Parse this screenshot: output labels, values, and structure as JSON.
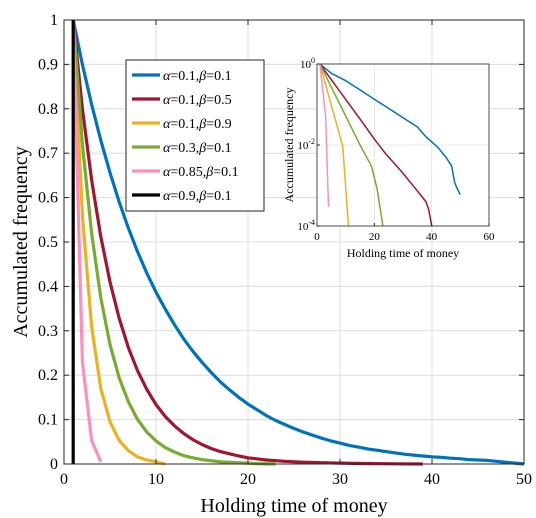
{
  "chart_data": [
    {
      "type": "line",
      "title": "",
      "xlabel": "Holding time of money",
      "ylabel": "Accumulated frequency",
      "xlim": [
        0,
        50
      ],
      "ylim": [
        0,
        1
      ],
      "xticks": [
        0,
        10,
        20,
        30,
        40,
        50
      ],
      "yticks": [
        0,
        0.1,
        0.2,
        0.3,
        0.4,
        0.5,
        0.6,
        0.7,
        0.8,
        0.9,
        1
      ],
      "xtick_labels": [
        "0",
        "10",
        "20",
        "30",
        "40",
        "50"
      ],
      "ytick_labels": [
        "0",
        "0.1",
        "0.2",
        "0.3",
        "0.4",
        "0.5",
        "0.6",
        "0.7",
        "0.8",
        "0.9",
        "1"
      ],
      "grid": true,
      "legend_position": "top-left",
      "series": [
        {
          "name": "α=0.1,β=0.1",
          "color": "#0072BD",
          "x": [
            1,
            2,
            3,
            4,
            5,
            6,
            7,
            8,
            9,
            10,
            11,
            12,
            13,
            14,
            15,
            16,
            17,
            18,
            19,
            20,
            21,
            22,
            23,
            24,
            25,
            26,
            27,
            28,
            29,
            30,
            31,
            32,
            33,
            34,
            35,
            36,
            37,
            38,
            39,
            40,
            41,
            42,
            43,
            44,
            45,
            46,
            47,
            48,
            49,
            50
          ],
          "y": [
            1,
            0.9,
            0.81,
            0.729,
            0.656,
            0.59,
            0.531,
            0.478,
            0.43,
            0.387,
            0.349,
            0.314,
            0.282,
            0.254,
            0.229,
            0.206,
            0.185,
            0.167,
            0.15,
            0.135,
            0.122,
            0.109,
            0.098,
            0.089,
            0.08,
            0.072,
            0.065,
            0.058,
            0.052,
            0.047,
            0.042,
            0.038,
            0.034,
            0.031,
            0.028,
            0.025,
            0.022,
            0.02,
            0.018,
            0.016,
            0.015,
            0.013,
            0.012,
            0.01,
            0.009,
            0.008,
            0.006,
            0.004,
            0.002,
            0
          ]
        },
        {
          "name": "α=0.1,β=0.5",
          "color": "#A2142F",
          "x": [
            1,
            2,
            3,
            4,
            5,
            6,
            7,
            8,
            9,
            10,
            11,
            12,
            13,
            14,
            15,
            16,
            17,
            18,
            19,
            20,
            22,
            24,
            26,
            28,
            30,
            33,
            36,
            39
          ],
          "y": [
            1,
            0.8,
            0.64,
            0.512,
            0.41,
            0.328,
            0.262,
            0.21,
            0.168,
            0.134,
            0.107,
            0.086,
            0.069,
            0.055,
            0.044,
            0.035,
            0.028,
            0.023,
            0.018,
            0.014,
            0.009,
            0.006,
            0.004,
            0.003,
            0.002,
            0.001,
            0.0005,
            0
          ]
        },
        {
          "name": "α=0.1,β=0.9",
          "color": "#EDB120",
          "x": [
            1,
            2,
            3,
            4,
            5,
            6,
            7,
            8,
            9,
            10,
            11
          ],
          "y": [
            1,
            0.56,
            0.31,
            0.17,
            0.095,
            0.053,
            0.03,
            0.016,
            0.009,
            0.005,
            0
          ]
        },
        {
          "name": "α=0.3,β=0.1",
          "color": "#77AC30",
          "x": [
            1,
            2,
            3,
            4,
            5,
            6,
            7,
            8,
            9,
            10,
            11,
            12,
            13,
            14,
            15,
            17,
            19,
            21,
            23
          ],
          "y": [
            1,
            0.72,
            0.52,
            0.374,
            0.269,
            0.194,
            0.14,
            0.1,
            0.072,
            0.052,
            0.037,
            0.027,
            0.019,
            0.014,
            0.01,
            0.005,
            0.003,
            0.001,
            0
          ]
        },
        {
          "name": "α=0.85,β=0.1",
          "color": "#FF8DBF",
          "x": [
            1,
            2,
            3,
            4
          ],
          "y": [
            1,
            0.23,
            0.053,
            0.005
          ]
        },
        {
          "name": "α=0.9,β=0.1",
          "color": "#000000",
          "x": [
            1,
            1
          ],
          "y": [
            0,
            1
          ]
        }
      ]
    },
    {
      "type": "line",
      "title": "",
      "xlabel": "Holding time of money",
      "ylabel": "Accumulated frequency",
      "xlim": [
        0,
        60
      ],
      "ylim": [
        0.0001,
        1
      ],
      "yscale": "log",
      "xticks": [
        0,
        20,
        40,
        60
      ],
      "xtick_labels": [
        "0",
        "20",
        "40",
        "60"
      ],
      "ytick_labels": [
        {
          "base": "10",
          "exp": "0",
          "value": 1
        },
        {
          "base": "10",
          "exp": "-2",
          "value": 0.01
        },
        {
          "base": "10",
          "exp": "-4",
          "value": 0.0001
        }
      ],
      "grid": true,
      "series": [
        {
          "color": "#0072BD",
          "x": [
            1,
            5,
            10,
            15,
            20,
            25,
            30,
            35,
            38,
            42,
            45,
            47,
            48,
            49,
            50
          ],
          "y": [
            1,
            0.59,
            0.387,
            0.229,
            0.135,
            0.08,
            0.047,
            0.028,
            0.016,
            0.009,
            0.005,
            0.003,
            0.0012,
            0.0008,
            0.0006
          ]
        },
        {
          "color": "#A2142F",
          "x": [
            1,
            5,
            10,
            15,
            20,
            24,
            27,
            30,
            33,
            36,
            38,
            39,
            40
          ],
          "y": [
            1,
            0.41,
            0.134,
            0.044,
            0.014,
            0.006,
            0.0035,
            0.002,
            0.0011,
            0.0006,
            0.0004,
            0.00025,
            0.0001
          ]
        },
        {
          "color": "#EDB120",
          "x": [
            1,
            3,
            5,
            7,
            9,
            11
          ],
          "y": [
            1,
            0.31,
            0.095,
            0.03,
            0.009,
            0.0001
          ]
        },
        {
          "color": "#77AC30",
          "x": [
            1,
            5,
            10,
            15,
            19,
            21,
            23
          ],
          "y": [
            1,
            0.269,
            0.052,
            0.01,
            0.003,
            0.0008,
            0.0001
          ]
        },
        {
          "color": "#FF8DBF",
          "x": [
            1,
            2,
            3,
            4
          ],
          "y": [
            1,
            0.23,
            0.053,
            0.0003
          ]
        }
      ]
    }
  ]
}
